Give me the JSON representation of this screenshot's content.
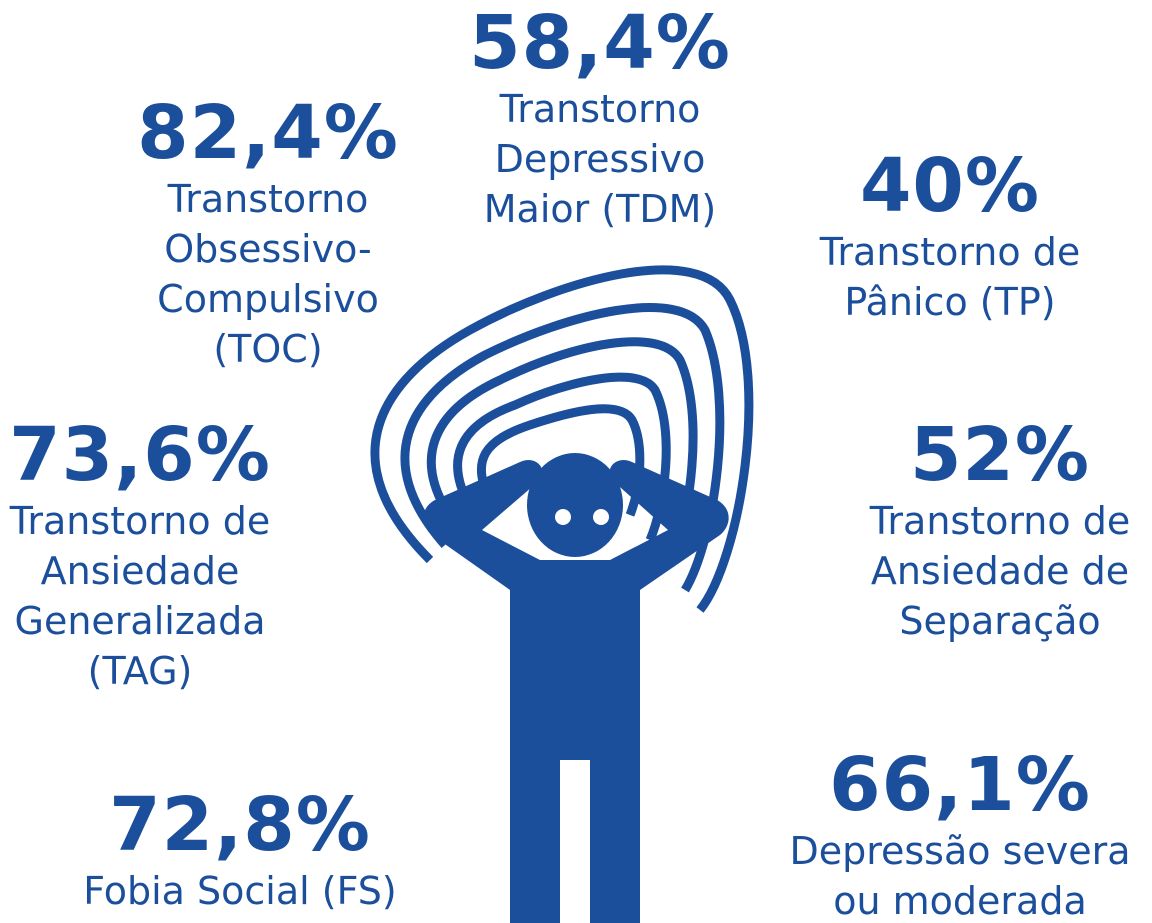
{
  "items": [
    {
      "value": "58,4%",
      "label": [
        "Transtorno",
        "Depressivo",
        "Maior (TDM)"
      ]
    },
    {
      "value": "82,4%",
      "label": [
        "Transtorno",
        "Obsessivo-",
        "Compulsivo",
        "(TOC)"
      ]
    },
    {
      "value": "40%",
      "label": [
        "Transtorno de",
        "Pânico (TP)"
      ]
    },
    {
      "value": "73,6%",
      "label": [
        "Transtorno de",
        "Ansiedade",
        "Generalizada",
        "(TAG)"
      ]
    },
    {
      "value": "52%",
      "label": [
        "Transtorno de",
        "Ansiedade de",
        "Separação"
      ]
    },
    {
      "value": "72,8%",
      "label": [
        "Fobia Social (FS)"
      ]
    },
    {
      "value": "66,1%",
      "label": [
        "Depressão severa",
        "ou moderada"
      ]
    }
  ]
}
